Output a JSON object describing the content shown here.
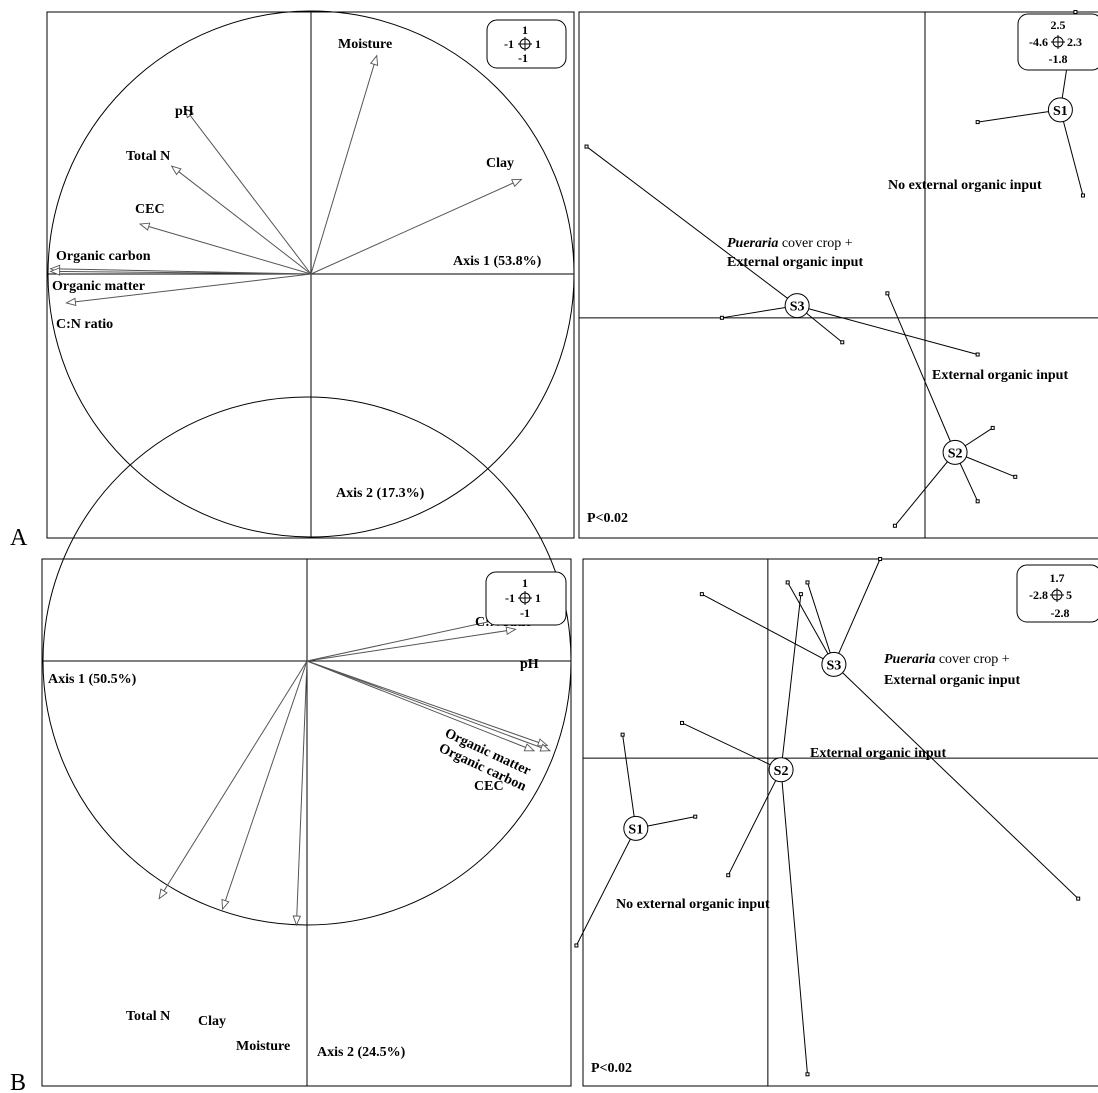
{
  "panels": [
    {
      "letter": "A"
    },
    {
      "letter": "B"
    }
  ],
  "chart_data": [
    {
      "type": "scatter",
      "panel": "A",
      "subtype": "correlation-circle",
      "xlabel": "Axis  1 (53.8%)",
      "ylabel": "Axis 2 (17.3%)",
      "xlim": [
        -1,
        1
      ],
      "ylim": [
        -1,
        1
      ],
      "scale": {
        "top": "1",
        "left": "-1",
        "right": "1",
        "bottom": "-1"
      },
      "variables": [
        {
          "name": "Moisture",
          "x": 0.25,
          "y": 0.83
        },
        {
          "name": "Clay",
          "x": 0.8,
          "y": 0.36
        },
        {
          "name": "pH",
          "x": -0.48,
          "y": 0.63
        },
        {
          "name": "Total N",
          "x": -0.53,
          "y": 0.41
        },
        {
          "name": "CEC",
          "x": -0.65,
          "y": 0.19
        },
        {
          "name": "Organic carbon",
          "x": -0.99,
          "y": 0.02
        },
        {
          "name": "Organic matter",
          "x": -0.99,
          "y": 0.01
        },
        {
          "name": "C:N ratio",
          "x": -0.93,
          "y": -0.11
        }
      ]
    },
    {
      "type": "scatter",
      "panel": "A",
      "subtype": "group-star-plot",
      "xlim": [
        -4.6,
        2.3
      ],
      "ylim": [
        -1.8,
        2.5
      ],
      "scale": {
        "top": "2.5",
        "left": "-4.6",
        "right": "2.3",
        "bottom": "-1.8"
      },
      "annotation": "P<0.02",
      "groups": [
        {
          "name": "S1",
          "label": "No external organic input",
          "centroid": [
            1.8,
            1.7
          ],
          "points": [
            [
              0.7,
              1.6
            ],
            [
              2.0,
              2.5
            ],
            [
              2.1,
              1.0
            ]
          ]
        },
        {
          "name": "S3",
          "label_italic": "Pueraria",
          "label": " cover crop +",
          "label2": "External organic input",
          "centroid": [
            -1.7,
            0.1
          ],
          "points": [
            [
              -4.5,
              1.4
            ],
            [
              -2.7,
              0.0
            ],
            [
              -1.1,
              -0.2
            ],
            [
              0.7,
              -0.3
            ]
          ]
        },
        {
          "name": "S2",
          "label": "External organic input",
          "centroid": [
            0.4,
            -1.1
          ],
          "points": [
            [
              -0.5,
              0.2
            ],
            [
              0.9,
              -0.9
            ],
            [
              1.2,
              -1.3
            ],
            [
              0.7,
              -1.5
            ],
            [
              -0.4,
              -1.7
            ]
          ]
        }
      ]
    },
    {
      "type": "scatter",
      "panel": "B",
      "subtype": "correlation-circle",
      "xlabel": "Axis 1 (50.5%)",
      "ylabel": "Axis 2 (24.5%)",
      "xlim": [
        -1,
        1
      ],
      "ylim": [
        -1,
        1
      ],
      "scale": {
        "top": "1",
        "left": "-1",
        "right": "1",
        "bottom": "-1"
      },
      "variables": [
        {
          "name": "C:N ratio",
          "x": 0.88,
          "y": 0.19
        },
        {
          "name": "pH",
          "x": 0.79,
          "y": 0.12
        },
        {
          "name": "Organic matter",
          "x": 0.91,
          "y": -0.32
        },
        {
          "name": "Organic carbon",
          "x": 0.92,
          "y": -0.34
        },
        {
          "name": "CEC",
          "x": 0.86,
          "y": -0.34
        },
        {
          "name": "Total N",
          "x": -0.56,
          "y": -0.9
        },
        {
          "name": "Clay",
          "x": -0.32,
          "y": -0.94
        },
        {
          "name": "Moisture",
          "x": -0.04,
          "y": -1.0
        }
      ]
    },
    {
      "type": "scatter",
      "panel": "B",
      "subtype": "group-star-plot",
      "xlim": [
        -2.8,
        5
      ],
      "ylim": [
        -2.8,
        1.7
      ],
      "scale": {
        "top": "1.7",
        "left": "-2.8",
        "right": "5",
        "bottom": "-2.8"
      },
      "annotation": "P<0.02",
      "groups": [
        {
          "name": "S1",
          "label": "No external organic input",
          "centroid": [
            -2.0,
            -0.6
          ],
          "points": [
            [
              -2.2,
              0.2
            ],
            [
              -1.1,
              -0.5
            ],
            [
              -2.9,
              -1.6
            ]
          ]
        },
        {
          "name": "S2",
          "label": "External organic input",
          "centroid": [
            0.2,
            -0.1
          ],
          "points": [
            [
              -1.3,
              0.3
            ],
            [
              0.5,
              1.4
            ],
            [
              -0.6,
              -1.0
            ],
            [
              0.6,
              -2.7
            ]
          ]
        },
        {
          "name": "S3",
          "label_italic": "Pueraria",
          "label": " cover crop +",
          "label2": "External organic input",
          "centroid": [
            1.0,
            0.8
          ],
          "points": [
            [
              -1.0,
              1.4
            ],
            [
              0.3,
              1.5
            ],
            [
              0.6,
              1.5
            ],
            [
              1.7,
              1.7
            ],
            [
              4.7,
              -1.2
            ]
          ]
        }
      ]
    }
  ]
}
